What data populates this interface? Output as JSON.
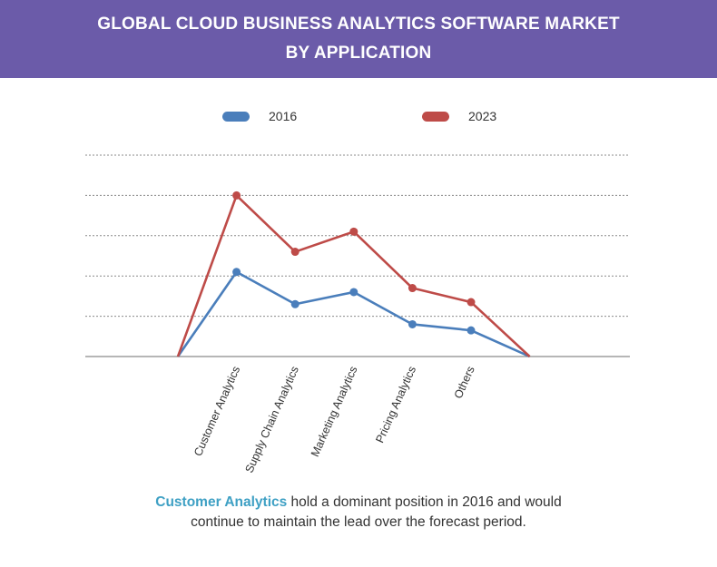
{
  "header": {
    "title_line1": "GLOBAL CLOUD BUSINESS ANALYTICS SOFTWARE MARKET",
    "title_line2": "BY APPLICATION",
    "background_color": "#6b5ba9"
  },
  "caption": {
    "highlight": "Customer Analytics",
    "rest_line1": " hold a dominant position in 2016 and would",
    "line2": "continue to maintain the lead over the forecast period.",
    "highlight_color": "#3ea0c4"
  },
  "chart_data": {
    "type": "line",
    "title": "",
    "xlabel": "",
    "ylabel": "",
    "categories": [
      "",
      "Customer Analytics",
      "Supply Chain Analytics",
      "Marketing Analytics",
      "Pricing Analytics",
      "Others",
      ""
    ],
    "ylim": [
      0,
      5
    ],
    "grid": true,
    "legend": "top-center",
    "series": [
      {
        "name": "2016",
        "color": "#4a7ebb",
        "values": [
          0,
          2.1,
          1.3,
          1.6,
          0.8,
          0.65,
          0
        ]
      },
      {
        "name": "2023",
        "color": "#be4b48",
        "values": [
          0,
          4.0,
          2.6,
          3.1,
          1.7,
          1.35,
          0
        ]
      }
    ]
  }
}
